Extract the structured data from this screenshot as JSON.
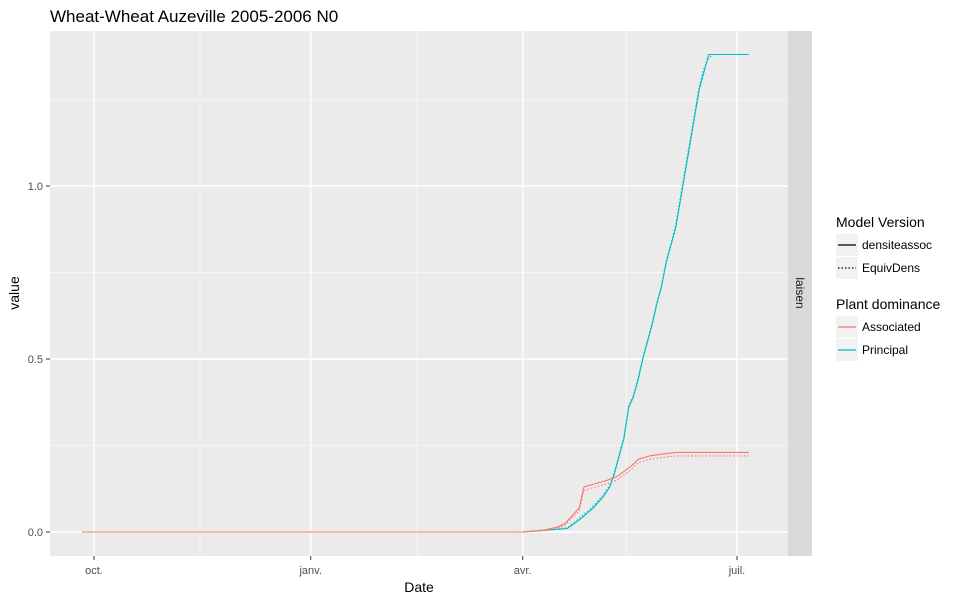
{
  "chart_data": {
    "type": "line",
    "title": "Wheat-Wheat Auzeville 2005-2006 N0",
    "xlabel": "Date",
    "ylabel": "value",
    "facet_label": "laisen",
    "x_ticks": [
      "oct.",
      "janv.",
      "avr.",
      "juil."
    ],
    "y_ticks": [
      "0.0",
      "0.5",
      "1.0"
    ],
    "ylim": [
      -0.06,
      1.4
    ],
    "grid": true,
    "legend_position": "right",
    "legends": [
      {
        "title": "Model Version",
        "entries": [
          {
            "label": "densiteassoc",
            "linetype": "solid"
          },
          {
            "label": "EquivDens",
            "linetype": "dotted"
          }
        ]
      },
      {
        "title": "Plant dominance",
        "entries": [
          {
            "label": "Associated",
            "color": "#F8766D"
          },
          {
            "label": "Principal",
            "color": "#00BFC4"
          }
        ]
      }
    ],
    "series": [
      {
        "dominance": "Principal",
        "version": "densiteassoc",
        "color": "#00BFC4",
        "linetype": "solid",
        "x": [
          "2005-09-26",
          "2006-04-01",
          "2006-04-10",
          "2006-04-20",
          "2006-04-26",
          "2006-05-01",
          "2006-05-05",
          "2006-05-08",
          "2006-05-10",
          "2006-05-12",
          "2006-05-14",
          "2006-05-16",
          "2006-05-18",
          "2006-05-20",
          "2006-05-22",
          "2006-05-24",
          "2006-05-26",
          "2006-05-28",
          "2006-05-30",
          "2006-06-01",
          "2006-06-03",
          "2006-06-05",
          "2006-06-07",
          "2006-06-09",
          "2006-06-11",
          "2006-06-13",
          "2006-06-15",
          "2006-06-17",
          "2006-06-19",
          "2006-06-21",
          "2006-06-23",
          "2006-07-06"
        ],
        "y": [
          0,
          0,
          0.005,
          0.01,
          0.04,
          0.07,
          0.1,
          0.13,
          0.17,
          0.22,
          0.27,
          0.36,
          0.39,
          0.44,
          0.5,
          0.55,
          0.6,
          0.66,
          0.71,
          0.78,
          0.83,
          0.88,
          0.96,
          1.04,
          1.12,
          1.2,
          1.28,
          1.33,
          1.38,
          1.38,
          1.38,
          1.38
        ]
      },
      {
        "dominance": "Principal",
        "version": "EquivDens",
        "color": "#00BFC4",
        "linetype": "dotted",
        "x": [
          "2005-09-26",
          "2006-04-01",
          "2006-04-10",
          "2006-04-20",
          "2006-04-26",
          "2006-05-01",
          "2006-05-05",
          "2006-05-08",
          "2006-05-10",
          "2006-05-12",
          "2006-05-14",
          "2006-05-16",
          "2006-05-18",
          "2006-05-20",
          "2006-05-22",
          "2006-05-24",
          "2006-05-26",
          "2006-05-28",
          "2006-05-30",
          "2006-06-01",
          "2006-06-03",
          "2006-06-05",
          "2006-06-07",
          "2006-06-09",
          "2006-06-11",
          "2006-06-13",
          "2006-06-15",
          "2006-06-17",
          "2006-06-19",
          "2006-06-21",
          "2006-06-23",
          "2006-07-06"
        ],
        "y": [
          0,
          0,
          0.006,
          0.012,
          0.045,
          0.075,
          0.105,
          0.135,
          0.175,
          0.225,
          0.275,
          0.365,
          0.395,
          0.445,
          0.505,
          0.555,
          0.605,
          0.665,
          0.715,
          0.785,
          0.835,
          0.89,
          0.97,
          1.05,
          1.13,
          1.21,
          1.29,
          1.34,
          1.37,
          1.38,
          1.38,
          1.38
        ]
      },
      {
        "dominance": "Associated",
        "version": "densiteassoc",
        "color": "#F8766D",
        "linetype": "solid",
        "x": [
          "2005-09-26",
          "2006-04-01",
          "2006-04-10",
          "2006-04-16",
          "2006-04-19",
          "2006-04-21",
          "2006-04-23",
          "2006-04-25",
          "2006-04-27",
          "2006-05-02",
          "2006-05-07",
          "2006-05-11",
          "2006-05-13",
          "2006-05-15",
          "2006-05-17",
          "2006-05-20",
          "2006-05-25",
          "2006-05-30",
          "2006-06-05",
          "2006-07-06"
        ],
        "y": [
          0,
          0,
          0.005,
          0.015,
          0.025,
          0.04,
          0.055,
          0.07,
          0.13,
          0.14,
          0.15,
          0.16,
          0.17,
          0.18,
          0.19,
          0.21,
          0.22,
          0.225,
          0.23,
          0.23
        ]
      },
      {
        "dominance": "Associated",
        "version": "EquivDens",
        "color": "#F8766D",
        "linetype": "dotted",
        "x": [
          "2005-09-26",
          "2006-04-01",
          "2006-04-10",
          "2006-04-16",
          "2006-04-19",
          "2006-04-21",
          "2006-04-23",
          "2006-04-25",
          "2006-04-27",
          "2006-05-02",
          "2006-05-07",
          "2006-05-11",
          "2006-05-13",
          "2006-05-15",
          "2006-05-17",
          "2006-05-20",
          "2006-05-25",
          "2006-05-30",
          "2006-06-05",
          "2006-07-06"
        ],
        "y": [
          0,
          0,
          0.004,
          0.012,
          0.02,
          0.034,
          0.048,
          0.062,
          0.12,
          0.13,
          0.14,
          0.15,
          0.16,
          0.17,
          0.18,
          0.2,
          0.21,
          0.215,
          0.22,
          0.22
        ]
      }
    ]
  }
}
